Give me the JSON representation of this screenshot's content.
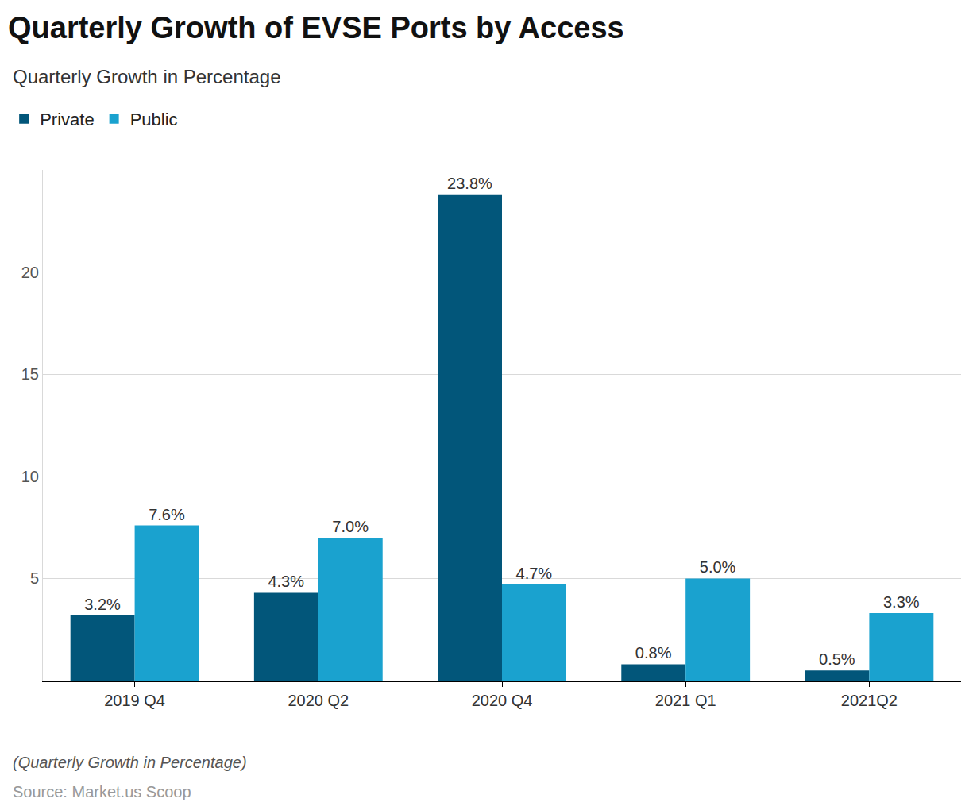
{
  "chart_data": {
    "type": "bar",
    "title": "Quarterly Growth of EVSE Ports by Access",
    "subtitle": "Quarterly Growth in Percentage",
    "annotations": [
      "(Quarterly Growth in Percentage)",
      "Source: Market.us Scoop"
    ],
    "categories": [
      "2019 Q4",
      "2020 Q2",
      "2020 Q4",
      "2021 Q1",
      "2021Q2"
    ],
    "series": [
      {
        "name": "Private",
        "color": "#02567a",
        "values": [
          3.2,
          4.3,
          23.8,
          0.8,
          0.5
        ],
        "value_labels": [
          "3.2%",
          "4.3%",
          "23.8%",
          "0.8%",
          "0.5%"
        ]
      },
      {
        "name": "Public",
        "color": "#1aa2cf",
        "values": [
          7.6,
          7.0,
          4.7,
          5.0,
          3.3
        ],
        "value_labels": [
          "7.6%",
          "7.0%",
          "4.7%",
          "5.0%",
          "3.3%"
        ]
      }
    ],
    "ylim": [
      0,
      25
    ],
    "yticks": [
      5,
      10,
      15,
      20
    ],
    "grid": true,
    "legend": "top-left",
    "data_labels": true
  }
}
